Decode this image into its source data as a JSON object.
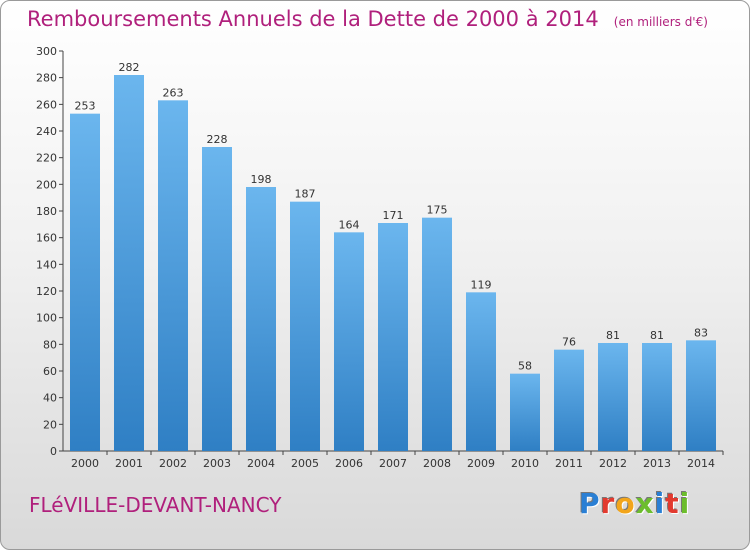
{
  "chart_data": {
    "type": "bar",
    "title": "Remboursements Annuels de la Dette de 2000 à 2014",
    "subtitle": "(en milliers d'€)",
    "categories": [
      "2000",
      "2001",
      "2002",
      "2003",
      "2004",
      "2005",
      "2006",
      "2007",
      "2008",
      "2009",
      "2010",
      "2011",
      "2012",
      "2013",
      "2014"
    ],
    "values": [
      253,
      282,
      263,
      228,
      198,
      187,
      164,
      171,
      175,
      119,
      58,
      76,
      81,
      81,
      83
    ],
    "ylim": [
      0,
      300
    ],
    "ytick_step": 20,
    "xlabel": "",
    "ylabel": "",
    "grid": false
  },
  "footer": {
    "commune": "FLéVILLE-DEVANT-NANCY"
  },
  "logo": {
    "letters": [
      "P",
      "r",
      "o",
      "x",
      "i",
      "t",
      "i"
    ],
    "colors": [
      "#2a7fd4",
      "#e23a2f",
      "#f2a51b",
      "#6cbd2c",
      "#2a7fd4",
      "#e23a2f",
      "#6cbd2c"
    ]
  },
  "colors": {
    "bar_top": "#6bb6ee",
    "bar_bottom": "#2f7fc4",
    "title": "#b0207c",
    "axis": "#444444"
  }
}
